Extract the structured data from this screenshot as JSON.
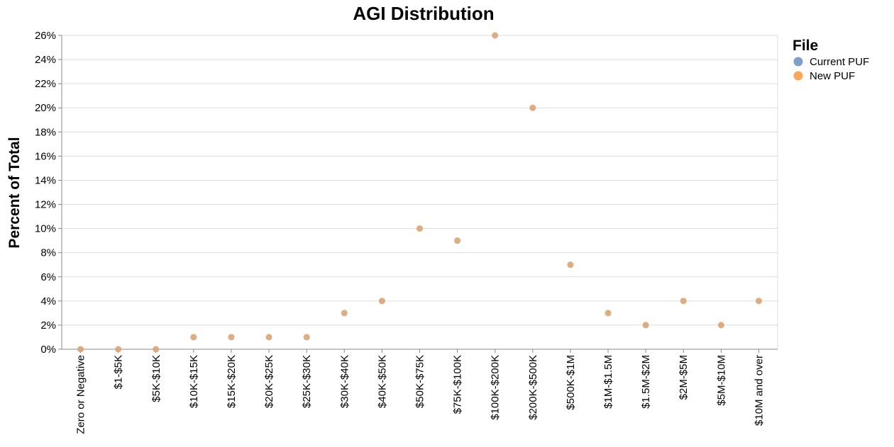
{
  "chart_data": {
    "type": "scatter",
    "title": "AGI Distribution",
    "xlabel": "",
    "ylabel": "Percent of Total",
    "ylim": [
      0,
      26
    ],
    "y_ticks": [
      "0%",
      "2%",
      "4%",
      "6%",
      "8%",
      "10%",
      "12%",
      "14%",
      "16%",
      "18%",
      "20%",
      "22%",
      "24%",
      "26%"
    ],
    "categories": [
      "Zero or Negative",
      "$1-$5K",
      "$5K-$10K",
      "$10K-$15K",
      "$15K-$20K",
      "$20K-$25K",
      "$25K-$30K",
      "$30K-$40K",
      "$40K-$50K",
      "$50K-$75K",
      "$75K-$100K",
      "$100K-$200K",
      "$200K-$500K",
      "$500K-$1M",
      "$1M-$1.5M",
      "$1.5M-$2M",
      "$2M-$5M",
      "$5M-$10M",
      "$10M and over"
    ],
    "series": [
      {
        "name": "Current PUF",
        "color": "#7f9fc7",
        "values": [
          0,
          0,
          0,
          1,
          1,
          1,
          1,
          3,
          4,
          10,
          9,
          26,
          20,
          7,
          3,
          2,
          4,
          2,
          4
        ]
      },
      {
        "name": "New PUF",
        "color": "#f7a85b",
        "values": [
          0,
          0,
          0,
          1,
          1,
          1,
          1,
          3,
          4,
          10,
          9,
          26,
          20,
          7,
          3,
          2,
          4,
          2,
          4
        ]
      }
    ],
    "overlap_color": "#cd8a4e",
    "grid": true,
    "legend": {
      "title": "File",
      "position": "top-right"
    }
  }
}
